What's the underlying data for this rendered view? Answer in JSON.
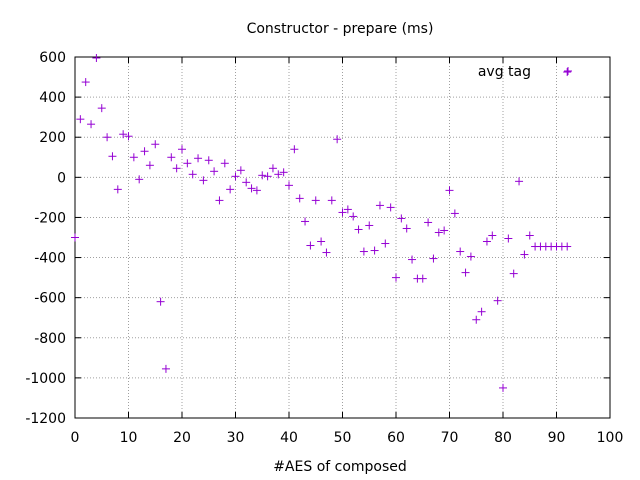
{
  "chart_data": {
    "type": "scatter",
    "title": "Constructor - prepare (ms)",
    "xlabel": "#AES of composed",
    "ylabel": "",
    "xlim": [
      0,
      100
    ],
    "ylim": [
      -1200,
      600
    ],
    "xticks": [
      0,
      10,
      20,
      30,
      40,
      50,
      60,
      70,
      80,
      90,
      100
    ],
    "yticks": [
      -1200,
      -1000,
      -800,
      -600,
      -400,
      -200,
      0,
      200,
      400,
      600
    ],
    "grid": true,
    "legend_position": "top-right",
    "series": [
      {
        "name": "avg tag",
        "color": "#9400d3",
        "marker": "plus",
        "points": [
          [
            0,
            -300
          ],
          [
            1,
            290
          ],
          [
            2,
            475
          ],
          [
            3,
            265
          ],
          [
            4,
            595
          ],
          [
            5,
            345
          ],
          [
            6,
            200
          ],
          [
            7,
            105
          ],
          [
            8,
            -60
          ],
          [
            9,
            215
          ],
          [
            10,
            205
          ],
          [
            11,
            100
          ],
          [
            12,
            -10
          ],
          [
            13,
            130
          ],
          [
            14,
            60
          ],
          [
            15,
            165
          ],
          [
            16,
            -620
          ],
          [
            17,
            -955
          ],
          [
            18,
            100
          ],
          [
            19,
            45
          ],
          [
            20,
            140
          ],
          [
            21,
            70
          ],
          [
            22,
            15
          ],
          [
            23,
            95
          ],
          [
            24,
            -15
          ],
          [
            25,
            85
          ],
          [
            26,
            30
          ],
          [
            27,
            -115
          ],
          [
            28,
            70
          ],
          [
            29,
            -60
          ],
          [
            30,
            5
          ],
          [
            31,
            35
          ],
          [
            32,
            -25
          ],
          [
            33,
            -55
          ],
          [
            34,
            -65
          ],
          [
            35,
            10
          ],
          [
            36,
            5
          ],
          [
            37,
            45
          ],
          [
            38,
            15
          ],
          [
            39,
            25
          ],
          [
            40,
            -40
          ],
          [
            41,
            140
          ],
          [
            42,
            -105
          ],
          [
            43,
            -220
          ],
          [
            44,
            -340
          ],
          [
            45,
            -115
          ],
          [
            46,
            -320
          ],
          [
            47,
            -375
          ],
          [
            48,
            -115
          ],
          [
            49,
            190
          ],
          [
            50,
            -175
          ],
          [
            51,
            -160
          ],
          [
            52,
            -195
          ],
          [
            53,
            -260
          ],
          [
            54,
            -370
          ],
          [
            55,
            -240
          ],
          [
            56,
            -365
          ],
          [
            57,
            -140
          ],
          [
            58,
            -330
          ],
          [
            59,
            -150
          ],
          [
            60,
            -500
          ],
          [
            61,
            -205
          ],
          [
            62,
            -255
          ],
          [
            63,
            -410
          ],
          [
            64,
            -505
          ],
          [
            65,
            -505
          ],
          [
            66,
            -225
          ],
          [
            67,
            -405
          ],
          [
            68,
            -275
          ],
          [
            69,
            -265
          ],
          [
            70,
            -65
          ],
          [
            71,
            -180
          ],
          [
            72,
            -370
          ],
          [
            73,
            -475
          ],
          [
            74,
            -395
          ],
          [
            75,
            -710
          ],
          [
            76,
            -670
          ],
          [
            77,
            -320
          ],
          [
            78,
            -290
          ],
          [
            79,
            -615
          ],
          [
            80,
            -1050
          ],
          [
            81,
            -305
          ],
          [
            82,
            -480
          ],
          [
            83,
            -20
          ],
          [
            84,
            -385
          ],
          [
            85,
            -290
          ],
          [
            86,
            -345
          ],
          [
            87,
            -345
          ],
          [
            88,
            -345
          ],
          [
            89,
            -345
          ],
          [
            90,
            -345
          ],
          [
            91,
            -345
          ],
          [
            92,
            -345
          ],
          [
            92,
            525
          ]
        ]
      }
    ]
  }
}
